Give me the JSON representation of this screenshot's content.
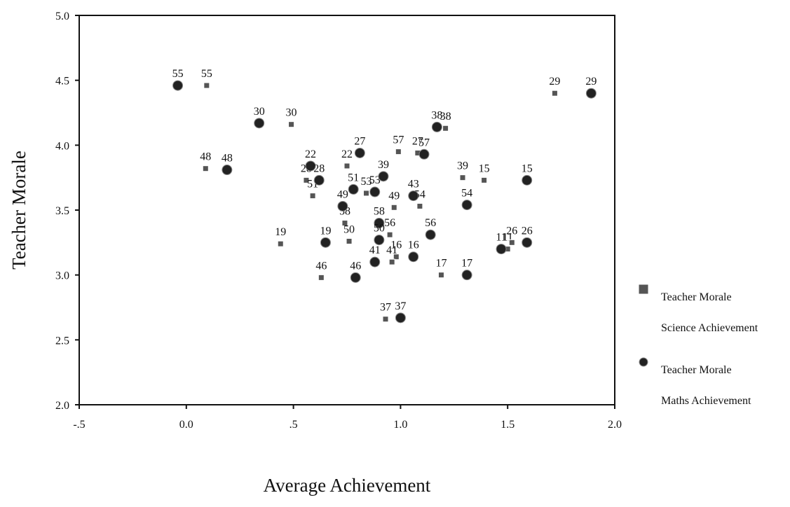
{
  "chart_data": {
    "type": "scatter",
    "x_label": "Average Achievement",
    "y_label": "Teacher Morale",
    "xlim": [
      -0.5,
      2.0
    ],
    "ylim": [
      2.0,
      5.0
    ],
    "xticks": [
      {
        "value": -0.5,
        "label": "-.5"
      },
      {
        "value": 0,
        "label": "0.0"
      },
      {
        "value": 0.5,
        "label": ".5"
      },
      {
        "value": 1,
        "label": "1.0"
      },
      {
        "value": 1.5,
        "label": "1.5"
      },
      {
        "value": 2,
        "label": "2.0"
      }
    ],
    "yticks": [
      {
        "value": 2,
        "label": "2.0"
      },
      {
        "value": 2.5,
        "label": "2.5"
      },
      {
        "value": 3,
        "label": "3.0"
      },
      {
        "value": 3.5,
        "label": "3.5"
      },
      {
        "value": 4,
        "label": "4.0"
      },
      {
        "value": 4.5,
        "label": "4.5"
      },
      {
        "value": 5,
        "label": "5.0"
      }
    ],
    "series": [
      {
        "name": [
          "Teacher Morale",
          "Science Achievement"
        ],
        "marker": "square",
        "color": "#555555",
        "labels": [
          "55",
          "30",
          "48",
          "22",
          "28",
          "51",
          "57",
          "27",
          "38",
          "39",
          "15",
          "53",
          "49",
          "54",
          "58",
          "56",
          "50",
          "19",
          "16",
          "41",
          "46",
          "17",
          "37",
          "11",
          "26",
          "29"
        ],
        "x": [
          0.095,
          0.49,
          0.09,
          0.75,
          0.56,
          0.59,
          0.99,
          1.08,
          1.21,
          1.29,
          1.39,
          0.84,
          0.97,
          1.09,
          0.74,
          0.95,
          0.76,
          0.44,
          0.98,
          0.96,
          0.63,
          1.19,
          0.93,
          1.5,
          1.52,
          1.72
        ],
        "y": [
          4.46,
          4.16,
          3.82,
          3.84,
          3.73,
          3.61,
          3.95,
          3.94,
          4.13,
          3.75,
          3.73,
          3.63,
          3.52,
          3.53,
          3.4,
          3.31,
          3.26,
          3.24,
          3.14,
          3.1,
          2.98,
          3.0,
          2.66,
          3.2,
          3.25,
          4.4
        ]
      },
      {
        "name": [
          "Teacher Morale",
          "Maths Achievement"
        ],
        "marker": "circle",
        "color": "#222222",
        "labels": [
          "55",
          "30",
          "48",
          "22",
          "28",
          "27",
          "51",
          "53",
          "39",
          "57",
          "38",
          "43",
          "54",
          "15",
          "49",
          "58",
          "50",
          "56",
          "19",
          "16",
          "41",
          "46",
          "17",
          "37",
          "11",
          "26",
          "29"
        ],
        "x": [
          -0.04,
          0.34,
          0.19,
          0.58,
          0.62,
          0.81,
          0.78,
          0.88,
          0.92,
          1.11,
          1.17,
          1.06,
          1.31,
          1.59,
          0.73,
          0.9,
          0.9,
          1.14,
          0.65,
          1.06,
          0.88,
          0.79,
          1.31,
          1.0,
          1.47,
          1.59,
          1.89
        ],
        "y": [
          4.46,
          4.17,
          3.81,
          3.84,
          3.73,
          3.94,
          3.66,
          3.64,
          3.76,
          3.93,
          4.14,
          3.61,
          3.54,
          3.73,
          3.53,
          3.4,
          3.27,
          3.31,
          3.25,
          3.14,
          3.1,
          2.98,
          3.0,
          2.67,
          3.2,
          3.25,
          4.4
        ]
      }
    ]
  }
}
